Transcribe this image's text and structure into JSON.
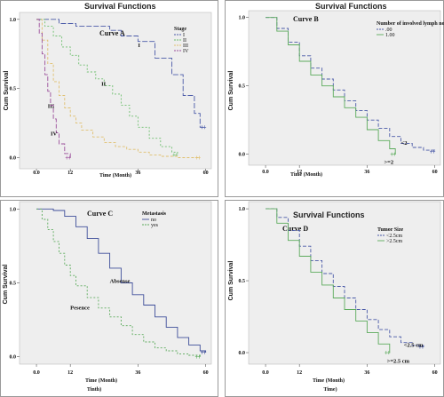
{
  "chart_data": [
    {
      "type": "line",
      "panel_title": "Survival Functions",
      "title": "Curve A",
      "xlabel": "Time (Month)",
      "ylabel": "Cum Survival",
      "xlim": [
        -6,
        62
      ],
      "ylim": [
        -0.08,
        1.05
      ],
      "xticks": [
        "0.0",
        "12",
        "36",
        "60"
      ],
      "yticks": [
        "1.0",
        "0.5",
        "0.0"
      ],
      "legend": {
        "title": "Stage",
        "position": "top-right",
        "items": [
          "I",
          "II",
          "III",
          "IV"
        ]
      },
      "series": [
        {
          "name": "I",
          "color": "#4a5aa8",
          "dash": "6,2",
          "x": [
            0,
            8,
            14,
            20,
            26,
            30,
            36,
            42,
            48,
            52,
            56,
            58,
            60
          ],
          "y": [
            1.0,
            0.97,
            0.95,
            0.95,
            0.92,
            0.88,
            0.84,
            0.72,
            0.6,
            0.45,
            0.32,
            0.22,
            0.22
          ],
          "label": "I",
          "label_at": [
            36,
            0.8
          ]
        },
        {
          "name": "II",
          "color": "#6fbf6f",
          "dash": "2,2",
          "x": [
            0,
            3,
            6,
            9,
            12,
            15,
            18,
            21,
            24,
            27,
            30,
            33,
            36,
            40,
            44,
            48,
            50
          ],
          "y": [
            1.0,
            0.95,
            0.88,
            0.8,
            0.74,
            0.67,
            0.62,
            0.57,
            0.52,
            0.46,
            0.38,
            0.3,
            0.22,
            0.14,
            0.08,
            0.04,
            0.02
          ],
          "label": "II",
          "label_at": [
            23,
            0.52
          ]
        },
        {
          "name": "III",
          "color": "#e0c070",
          "dash": "3,2",
          "x": [
            0,
            2,
            4,
            6,
            8,
            10,
            12,
            14,
            16,
            20,
            24,
            28,
            32,
            36,
            40,
            44,
            50,
            58
          ],
          "y": [
            1.0,
            0.85,
            0.68,
            0.55,
            0.45,
            0.36,
            0.3,
            0.25,
            0.2,
            0.15,
            0.11,
            0.08,
            0.06,
            0.04,
            0.02,
            0.01,
            0.0,
            0.0
          ],
          "label": "III",
          "label_at": [
            4,
            0.36
          ]
        },
        {
          "name": "IV",
          "color": "#9b4f9b",
          "dash": "5,2",
          "x": [
            0,
            1,
            2,
            3,
            4,
            5,
            6,
            7,
            8,
            10,
            12
          ],
          "y": [
            1.0,
            0.9,
            0.75,
            0.6,
            0.48,
            0.38,
            0.28,
            0.18,
            0.1,
            0.03,
            0.0
          ],
          "label": "IV",
          "label_at": [
            5,
            0.16
          ]
        }
      ]
    },
    {
      "type": "line",
      "panel_title": "Survival Functions",
      "title": "Curve B",
      "xlabel": "Time (Month)",
      "ylabel": "Cum Survival",
      "xlim": [
        -6,
        62
      ],
      "ylim": [
        -0.08,
        1.05
      ],
      "xticks": [
        "0.0",
        "12",
        "36",
        "60"
      ],
      "yticks": [
        "1.0",
        "0.5",
        "0.0"
      ],
      "legend": {
        "title": "Number of involved lymph node",
        "position": "top-right",
        "items": [
          ".00",
          "1.00"
        ]
      },
      "series": [
        {
          "name": ".00",
          "color": "#4a5aa8",
          "dash": "4,2",
          "x": [
            0,
            4,
            8,
            12,
            16,
            20,
            24,
            28,
            32,
            36,
            40,
            44,
            48,
            52,
            56,
            60
          ],
          "y": [
            1.0,
            0.92,
            0.82,
            0.72,
            0.63,
            0.55,
            0.47,
            0.39,
            0.32,
            0.25,
            0.19,
            0.13,
            0.08,
            0.05,
            0.03,
            0.02
          ],
          "label": "<2",
          "label_at": [
            48,
            0.07
          ]
        },
        {
          "name": "1.00",
          "color": "#5cab5c",
          "dash": "",
          "x": [
            0,
            4,
            8,
            12,
            16,
            20,
            24,
            28,
            32,
            36,
            40,
            44,
            46
          ],
          "y": [
            1.0,
            0.9,
            0.8,
            0.68,
            0.58,
            0.5,
            0.42,
            0.34,
            0.27,
            0.18,
            0.1,
            0.04,
            0.0
          ],
          "label": ">=2",
          "label_at": [
            42,
            -0.07
          ]
        }
      ]
    },
    {
      "type": "line",
      "panel_title": "",
      "title": "Curve C",
      "xlabel": "Time (Month)",
      "ylabel": "Cum Survival",
      "xlim": [
        -6,
        62
      ],
      "ylim": [
        -0.05,
        1.05
      ],
      "xticks": [
        "0.0",
        "12",
        "36",
        "60"
      ],
      "yticks": [
        "1.0",
        "0.5",
        "0.0"
      ],
      "legend": {
        "title": "Metastasis",
        "position": "top-right",
        "items": [
          "no",
          "yes"
        ]
      },
      "series": [
        {
          "name": "no",
          "color": "#3f4f9a",
          "dash": "",
          "x": [
            0,
            6,
            10,
            14,
            18,
            22,
            26,
            30,
            34,
            38,
            42,
            46,
            50,
            54,
            58,
            60
          ],
          "y": [
            1.0,
            0.99,
            0.95,
            0.88,
            0.8,
            0.7,
            0.6,
            0.5,
            0.42,
            0.35,
            0.27,
            0.2,
            0.13,
            0.08,
            0.04,
            0.03
          ],
          "label": "Absense",
          "label_at": [
            26,
            0.5
          ]
        },
        {
          "name": "yes",
          "color": "#5cab5c",
          "dash": "2,2",
          "x": [
            0,
            2,
            4,
            6,
            8,
            10,
            12,
            14,
            18,
            22,
            26,
            30,
            34,
            38,
            42,
            46,
            50,
            54,
            58
          ],
          "y": [
            1.0,
            0.93,
            0.86,
            0.78,
            0.7,
            0.62,
            0.55,
            0.48,
            0.4,
            0.33,
            0.27,
            0.21,
            0.15,
            0.1,
            0.06,
            0.04,
            0.02,
            0.01,
            0.0
          ],
          "label": "Pesence",
          "label_at": [
            12,
            0.32
          ]
        }
      ],
      "note": "Tinth)"
    },
    {
      "type": "line",
      "panel_title": "Survival Functions",
      "title": "Curve D",
      "xlabel": "Time (Month)",
      "ylabel": "Cum Survival",
      "xlim": [
        -6,
        62
      ],
      "ylim": [
        -0.08,
        1.05
      ],
      "xticks": [
        "0.0",
        "12",
        "36",
        "60"
      ],
      "yticks": [
        "1.0",
        "0.5",
        "0.0"
      ],
      "legend": {
        "title": "Tumor Size",
        "position": "top-right",
        "items": [
          "<2.5cm",
          ">2.5cm"
        ]
      },
      "series": [
        {
          "name": "<2.5cm",
          "color": "#4a5aa8",
          "dash": "4,2",
          "x": [
            0,
            4,
            8,
            12,
            16,
            20,
            24,
            28,
            32,
            36,
            40,
            44,
            48,
            52,
            56
          ],
          "y": [
            1.0,
            0.94,
            0.85,
            0.74,
            0.64,
            0.55,
            0.46,
            0.38,
            0.3,
            0.23,
            0.16,
            0.11,
            0.07,
            0.05,
            0.04
          ],
          "label": "<2.5 cm",
          "label_at": [
            49,
            0.04
          ]
        },
        {
          "name": ">2.5cm",
          "color": "#5cab5c",
          "dash": "",
          "x": [
            0,
            4,
            8,
            12,
            16,
            20,
            24,
            28,
            32,
            36,
            40,
            44
          ],
          "y": [
            1.0,
            0.9,
            0.78,
            0.67,
            0.56,
            0.47,
            0.38,
            0.3,
            0.22,
            0.14,
            0.06,
            0.0
          ],
          "label": ">=2.5 cm",
          "label_at": [
            43,
            -0.07
          ]
        }
      ],
      "note": "Time)"
    }
  ]
}
